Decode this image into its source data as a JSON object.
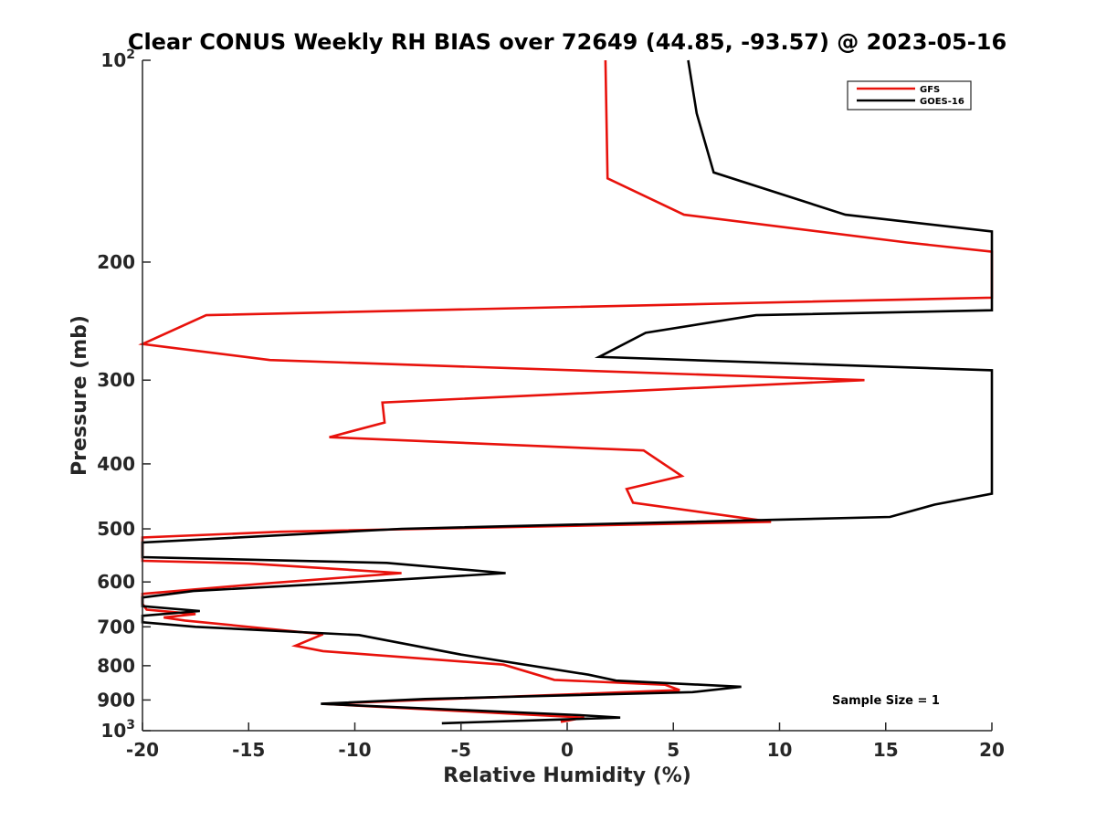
{
  "chart_data": {
    "type": "line",
    "title": "Clear CONUS Weekly RH BIAS over 72649 (44.85, -93.57) @ 2023-05-16",
    "xlabel": "Relative Humidity (%)",
    "ylabel": "Pressure (mb)",
    "xlim": [
      -20,
      20
    ],
    "ylim": [
      100,
      1000
    ],
    "y_scale": "log",
    "y_reversed": true,
    "x_ticks": [
      -20,
      -15,
      -10,
      -5,
      0,
      5,
      10,
      15,
      20
    ],
    "x_tick_labels": [
      "-20",
      "-15",
      "-10",
      "-5",
      "0",
      "5",
      "10",
      "15",
      "20"
    ],
    "y_ticks": [
      100,
      200,
      300,
      400,
      500,
      600,
      700,
      800,
      900,
      1000
    ],
    "y_tick_labels": [
      {
        "base": "10",
        "exp": "2"
      },
      {
        "base": "200",
        "exp": ""
      },
      {
        "base": "300",
        "exp": ""
      },
      {
        "base": "400",
        "exp": ""
      },
      {
        "base": "500",
        "exp": ""
      },
      {
        "base": "600",
        "exp": ""
      },
      {
        "base": "700",
        "exp": ""
      },
      {
        "base": "800",
        "exp": ""
      },
      {
        "base": "900",
        "exp": ""
      },
      {
        "base": "10",
        "exp": "3"
      }
    ],
    "grid": false,
    "legend_position": "top-right",
    "annotation": "Sample Size = 1",
    "series": [
      {
        "name": "GFS",
        "color": "#e8120c",
        "points": [
          [
            1.8,
            100
          ],
          [
            1.9,
            150
          ],
          [
            5.5,
            170
          ],
          [
            16,
            187
          ],
          [
            20,
            193
          ],
          [
            20,
            226
          ],
          [
            9,
            230
          ],
          [
            -17,
            240
          ],
          [
            -20,
            265
          ],
          [
            -14,
            280
          ],
          [
            14,
            300
          ],
          [
            -8.7,
            324
          ],
          [
            -8.6,
            347
          ],
          [
            -11.2,
            365
          ],
          [
            3.6,
            382
          ],
          [
            5.4,
            417
          ],
          [
            2.8,
            436
          ],
          [
            3.1,
            457
          ],
          [
            9.6,
            488
          ],
          [
            -13.5,
            505
          ],
          [
            -20,
            515
          ],
          [
            -20,
            558
          ],
          [
            -15,
            563
          ],
          [
            -7.8,
            582
          ],
          [
            -14.2,
            603
          ],
          [
            -20,
            625
          ],
          [
            -20,
            647
          ],
          [
            -19.8,
            660
          ],
          [
            -17.5,
            670
          ],
          [
            -19,
            678
          ],
          [
            -18,
            685
          ],
          [
            -11.5,
            718
          ],
          [
            -12.8,
            747
          ],
          [
            -11.5,
            761
          ],
          [
            -3,
            797
          ],
          [
            -0.6,
            840
          ],
          [
            4.6,
            854
          ],
          [
            5.3,
            870
          ],
          [
            -11.5,
            912
          ],
          [
            0.8,
            956
          ],
          [
            -0.3,
            970
          ]
        ]
      },
      {
        "name": "GOES-16",
        "color": "#000000",
        "points": [
          [
            5.7,
            100
          ],
          [
            6.1,
            120
          ],
          [
            6.9,
            147
          ],
          [
            13.1,
            170
          ],
          [
            20,
            180
          ],
          [
            20,
            236
          ],
          [
            8.9,
            240
          ],
          [
            3.7,
            255
          ],
          [
            1.5,
            277
          ],
          [
            20,
            290
          ],
          [
            20,
            443
          ],
          [
            17.3,
            460
          ],
          [
            15.2,
            480
          ],
          [
            -7.8,
            500
          ],
          [
            -20,
            524
          ],
          [
            -20,
            551
          ],
          [
            -8.5,
            562
          ],
          [
            -2.9,
            582
          ],
          [
            -10.2,
            601
          ],
          [
            -17.6,
            619
          ],
          [
            -20,
            633
          ],
          [
            -20,
            652
          ],
          [
            -17.3,
            663
          ],
          [
            -20,
            674
          ],
          [
            -20,
            689
          ],
          [
            -17.5,
            700
          ],
          [
            -9.8,
            720
          ],
          [
            -5,
            770
          ],
          [
            1,
            825
          ],
          [
            2.3,
            842
          ],
          [
            8.2,
            860
          ],
          [
            5.9,
            876
          ],
          [
            -6.7,
            897
          ],
          [
            -11.6,
            912
          ],
          [
            0.6,
            948
          ],
          [
            2.5,
            956
          ],
          [
            -5.9,
            975
          ]
        ]
      }
    ]
  }
}
